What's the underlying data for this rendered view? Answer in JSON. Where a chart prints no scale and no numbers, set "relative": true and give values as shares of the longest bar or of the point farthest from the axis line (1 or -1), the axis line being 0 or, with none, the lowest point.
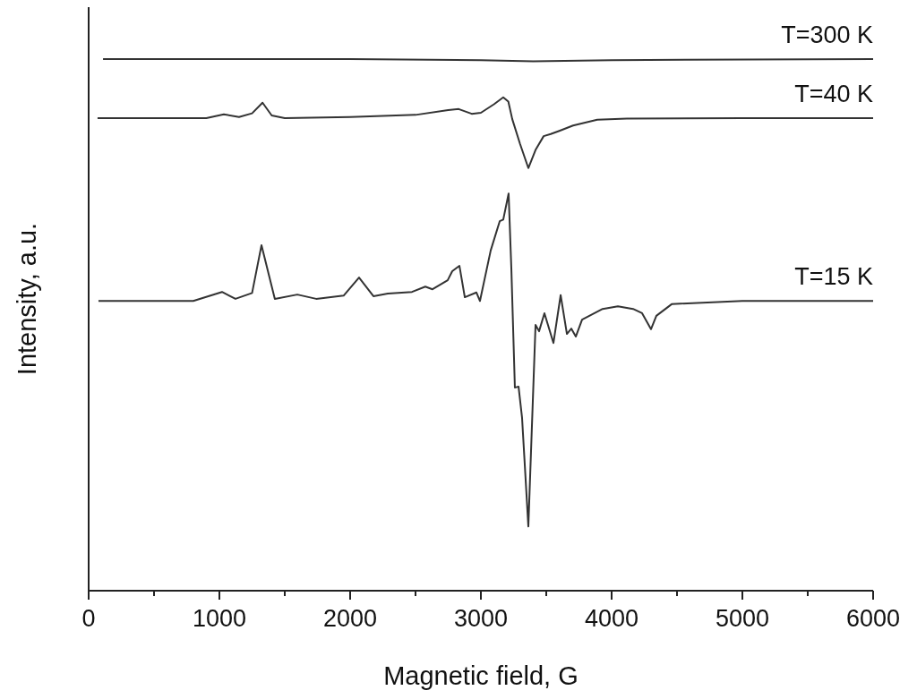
{
  "chart_data": {
    "type": "line",
    "relative": true,
    "xlabel": "Magnetic field, G",
    "ylabel": "Intensity, a.u.",
    "xlim": [
      0,
      6000
    ],
    "xticks": [
      0,
      {
        "value": 500,
        "label": null
      },
      1000,
      {
        "value": 1500,
        "label": null
      },
      2000,
      {
        "value": 2500,
        "label": null
      },
      3000,
      {
        "value": 3500,
        "label": null
      },
      4000,
      {
        "value": 4500,
        "label": null
      },
      5000,
      {
        "value": 5500,
        "label": null
      },
      6000
    ],
    "grid": false,
    "line_style": "solid",
    "series": [
      {
        "name": "T=300 K",
        "color": "#333333",
        "x": [
          110,
          2000,
          3000,
          3400,
          4000,
          6000
        ],
        "values": [
          1,
          1,
          0.998,
          0.996,
          0.998,
          1
        ]
      },
      {
        "name": "T=40 K",
        "color": "#333333",
        "x": [
          68,
          900,
          1034,
          1150,
          1250,
          1330,
          1400,
          1500,
          2000,
          2500,
          2750,
          2830,
          2930,
          3000,
          3100,
          3171,
          3210,
          3240,
          3300,
          3363,
          3420,
          3480,
          3534,
          3600,
          3705,
          3890,
          4116,
          5000,
          6000
        ],
        "values": [
          0.889,
          0.889,
          0.896,
          0.891,
          0.898,
          0.918,
          0.894,
          0.889,
          0.891,
          0.895,
          0.904,
          0.906,
          0.897,
          0.899,
          0.915,
          0.928,
          0.92,
          0.887,
          0.84,
          0.795,
          0.83,
          0.855,
          0.859,
          0.865,
          0.875,
          0.886,
          0.888,
          0.889,
          0.889
        ]
      },
      {
        "name": "T=15 K",
        "color": "#333333",
        "x": [
          75,
          800,
          1020,
          1123,
          1250,
          1322,
          1424,
          1596,
          1740,
          1950,
          2068,
          2178,
          2288,
          2473,
          2575,
          2630,
          2746,
          2781,
          2836,
          2877,
          2966,
          2993,
          3075,
          3144,
          3171,
          3212,
          3233,
          3260,
          3288,
          3315,
          3363,
          3418,
          3445,
          3486,
          3555,
          3610,
          3658,
          3692,
          3726,
          3774,
          3931,
          4048,
          4164,
          4233,
          4301,
          4342,
          4459,
          4527,
          5000,
          6000
        ],
        "values": [
          0.545,
          0.545,
          0.562,
          0.549,
          0.56,
          0.65,
          0.549,
          0.557,
          0.549,
          0.555,
          0.589,
          0.554,
          0.559,
          0.562,
          0.572,
          0.567,
          0.584,
          0.601,
          0.611,
          0.552,
          0.561,
          0.545,
          0.64,
          0.695,
          0.698,
          0.747,
          0.606,
          0.382,
          0.384,
          0.325,
          0.121,
          0.5,
          0.488,
          0.522,
          0.466,
          0.556,
          0.483,
          0.493,
          0.478,
          0.51,
          0.53,
          0.535,
          0.53,
          0.522,
          0.492,
          0.517,
          0.539,
          0.54,
          0.545,
          0.545
        ]
      }
    ]
  }
}
